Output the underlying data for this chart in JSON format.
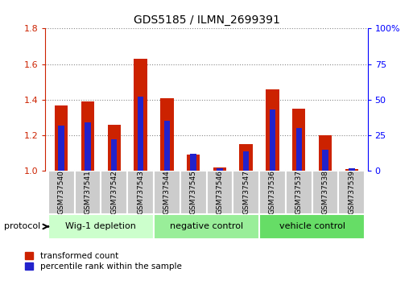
{
  "title": "GDS5185 / ILMN_2699391",
  "samples": [
    "GSM737540",
    "GSM737541",
    "GSM737542",
    "GSM737543",
    "GSM737544",
    "GSM737545",
    "GSM737546",
    "GSM737547",
    "GSM737536",
    "GSM737537",
    "GSM737538",
    "GSM737539"
  ],
  "red_values": [
    1.37,
    1.39,
    1.26,
    1.63,
    1.41,
    1.09,
    1.02,
    1.15,
    1.46,
    1.35,
    1.2,
    1.01
  ],
  "blue_pct": [
    32,
    34,
    22,
    52,
    35,
    12,
    2,
    14,
    43,
    30,
    15,
    2
  ],
  "groups": [
    {
      "label": "Wig-1 depletion",
      "start": 0,
      "end": 4,
      "color": "#ccffcc"
    },
    {
      "label": "negative control",
      "start": 4,
      "end": 8,
      "color": "#99ee99"
    },
    {
      "label": "vehicle control",
      "start": 8,
      "end": 12,
      "color": "#66dd66"
    }
  ],
  "ylim_left": [
    1.0,
    1.8
  ],
  "ylim_right": [
    0.0,
    100.0
  ],
  "yticks_left": [
    1.0,
    1.2,
    1.4,
    1.6,
    1.8
  ],
  "yticks_right": [
    0,
    25,
    50,
    75,
    100
  ],
  "ytick_labels_right": [
    "0",
    "25",
    "50",
    "75",
    "100%"
  ],
  "bar_width": 0.5,
  "red_color": "#cc2200",
  "blue_color": "#2222cc",
  "grid_color": "#888888",
  "protocol_label": "protocol",
  "legend_red": "transformed count",
  "legend_blue": "percentile rank within the sample"
}
